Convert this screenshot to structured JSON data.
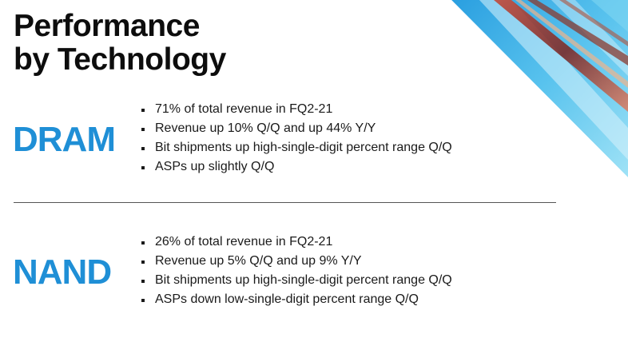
{
  "title": {
    "line1": "Performance",
    "line2": "by Technology"
  },
  "sections": [
    {
      "label": "DRAM",
      "bullets": [
        "71% of total revenue in FQ2-21",
        "Revenue up 10% Q/Q and up 44% Y/Y",
        "Bit shipments up high-single-digit percent range Q/Q",
        "ASPs up slightly Q/Q"
      ]
    },
    {
      "label": "NAND",
      "bullets": [
        "26% of total revenue in FQ2-21",
        "Revenue up 5% Q/Q and up 9% Y/Y",
        "Bit shipments up high-single-digit percent range Q/Q",
        "ASPs down low-single-digit percent range Q/Q"
      ]
    }
  ],
  "colors": {
    "accent": "#1f8fd6",
    "text": "#1a1a1a",
    "divider": "#555555"
  }
}
